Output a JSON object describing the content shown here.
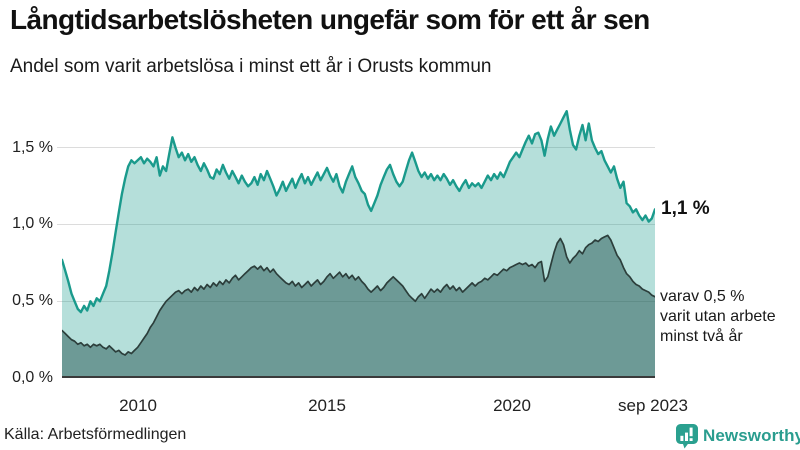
{
  "header": {
    "title": "Långtidsarbetslösheten ungefär som för ett år sen",
    "subtitle": "Andel som varit arbetslösa i minst ett år i Orusts kommun"
  },
  "chart_data": {
    "type": "area",
    "title": "Långtidsarbetslösheten ungefär som för ett år sen",
    "subtitle": "Andel som varit arbetslösa i minst ett år i Orusts kommun",
    "unit": "%",
    "frequency": "monthly",
    "x_range": [
      "2008-01",
      "2023-09"
    ],
    "ylim": [
      0,
      1.75
    ],
    "grid": "horizontal",
    "y_ticks": [
      "1,5 %",
      "1,0 %",
      "0,5 %",
      "0,0 %"
    ],
    "y_tick_values": [
      1.5,
      1.0,
      0.5,
      0.0
    ],
    "x_ticks": [
      "2010",
      "2015",
      "2020",
      "sep 2023"
    ],
    "series": [
      {
        "id": "total",
        "name": "Andel som varit arbetslösa i minst ett år",
        "color": "#1a9a8c",
        "fill": "rgba(26,154,140,0.32)",
        "end_value": 1.1,
        "end_label": "1,1 %",
        "values": [
          0.77,
          0.7,
          0.63,
          0.55,
          0.5,
          0.45,
          0.43,
          0.47,
          0.44,
          0.5,
          0.47,
          0.52,
          0.5,
          0.55,
          0.6,
          0.7,
          0.82,
          0.95,
          1.08,
          1.2,
          1.3,
          1.38,
          1.42,
          1.4,
          1.42,
          1.44,
          1.4,
          1.43,
          1.41,
          1.38,
          1.44,
          1.32,
          1.38,
          1.35,
          1.46,
          1.57,
          1.5,
          1.44,
          1.47,
          1.42,
          1.46,
          1.41,
          1.44,
          1.39,
          1.35,
          1.4,
          1.36,
          1.31,
          1.3,
          1.36,
          1.33,
          1.39,
          1.34,
          1.3,
          1.35,
          1.31,
          1.27,
          1.32,
          1.28,
          1.25,
          1.27,
          1.31,
          1.26,
          1.33,
          1.29,
          1.35,
          1.3,
          1.25,
          1.19,
          1.23,
          1.28,
          1.22,
          1.26,
          1.3,
          1.24,
          1.29,
          1.33,
          1.27,
          1.31,
          1.26,
          1.3,
          1.34,
          1.29,
          1.33,
          1.37,
          1.32,
          1.28,
          1.33,
          1.25,
          1.21,
          1.28,
          1.33,
          1.38,
          1.31,
          1.27,
          1.22,
          1.2,
          1.13,
          1.09,
          1.14,
          1.19,
          1.26,
          1.31,
          1.36,
          1.39,
          1.33,
          1.28,
          1.25,
          1.28,
          1.35,
          1.42,
          1.47,
          1.41,
          1.35,
          1.31,
          1.34,
          1.3,
          1.33,
          1.29,
          1.32,
          1.29,
          1.33,
          1.3,
          1.26,
          1.29,
          1.25,
          1.22,
          1.26,
          1.29,
          1.24,
          1.27,
          1.25,
          1.27,
          1.24,
          1.28,
          1.32,
          1.29,
          1.33,
          1.3,
          1.34,
          1.31,
          1.36,
          1.41,
          1.44,
          1.47,
          1.44,
          1.49,
          1.54,
          1.58,
          1.53,
          1.59,
          1.6,
          1.55,
          1.45,
          1.56,
          1.64,
          1.58,
          1.62,
          1.66,
          1.7,
          1.74,
          1.62,
          1.52,
          1.49,
          1.58,
          1.65,
          1.55,
          1.66,
          1.55,
          1.5,
          1.46,
          1.48,
          1.42,
          1.38,
          1.34,
          1.38,
          1.3,
          1.24,
          1.28,
          1.14,
          1.12,
          1.08,
          1.1,
          1.06,
          1.03,
          1.06,
          1.02,
          1.04,
          1.1
        ]
      },
      {
        "id": "subset",
        "name": "varav utan arbete minst två år",
        "color": "#2c3e3b",
        "fill": "rgba(22,72,66,0.45)",
        "end_value": 0.5,
        "end_label": "varav 0,5 % varit utan arbete minst två år",
        "values": [
          0.31,
          0.29,
          0.27,
          0.25,
          0.24,
          0.22,
          0.23,
          0.21,
          0.22,
          0.2,
          0.22,
          0.21,
          0.22,
          0.2,
          0.19,
          0.21,
          0.19,
          0.17,
          0.18,
          0.16,
          0.15,
          0.17,
          0.16,
          0.18,
          0.2,
          0.23,
          0.26,
          0.29,
          0.33,
          0.36,
          0.4,
          0.44,
          0.47,
          0.5,
          0.52,
          0.54,
          0.56,
          0.57,
          0.55,
          0.57,
          0.58,
          0.56,
          0.59,
          0.57,
          0.6,
          0.58,
          0.61,
          0.59,
          0.62,
          0.6,
          0.63,
          0.61,
          0.64,
          0.62,
          0.65,
          0.67,
          0.64,
          0.66,
          0.68,
          0.7,
          0.72,
          0.73,
          0.71,
          0.73,
          0.7,
          0.72,
          0.69,
          0.71,
          0.68,
          0.66,
          0.64,
          0.62,
          0.61,
          0.63,
          0.6,
          0.62,
          0.59,
          0.61,
          0.63,
          0.6,
          0.62,
          0.64,
          0.61,
          0.63,
          0.66,
          0.68,
          0.65,
          0.67,
          0.69,
          0.66,
          0.68,
          0.65,
          0.67,
          0.64,
          0.66,
          0.63,
          0.61,
          0.58,
          0.56,
          0.58,
          0.6,
          0.57,
          0.59,
          0.62,
          0.64,
          0.66,
          0.64,
          0.62,
          0.6,
          0.57,
          0.54,
          0.52,
          0.5,
          0.53,
          0.55,
          0.52,
          0.55,
          0.58,
          0.56,
          0.58,
          0.56,
          0.59,
          0.61,
          0.58,
          0.6,
          0.57,
          0.59,
          0.56,
          0.58,
          0.6,
          0.62,
          0.6,
          0.62,
          0.63,
          0.65,
          0.64,
          0.66,
          0.68,
          0.67,
          0.69,
          0.71,
          0.7,
          0.72,
          0.73,
          0.74,
          0.75,
          0.74,
          0.75,
          0.73,
          0.74,
          0.72,
          0.75,
          0.76,
          0.63,
          0.66,
          0.74,
          0.82,
          0.88,
          0.91,
          0.87,
          0.79,
          0.75,
          0.78,
          0.8,
          0.83,
          0.81,
          0.85,
          0.87,
          0.88,
          0.9,
          0.89,
          0.91,
          0.92,
          0.93,
          0.9,
          0.85,
          0.8,
          0.77,
          0.72,
          0.68,
          0.66,
          0.63,
          0.61,
          0.6,
          0.58,
          0.57,
          0.56,
          0.54,
          0.53
        ]
      }
    ]
  },
  "annotations": {
    "total_end": "1,1 %",
    "subset_line1": "varav 0,5 %",
    "subset_line2": "varit utan arbete",
    "subset_line3": "minst två år"
  },
  "footer": {
    "source": "Källa: Arbetsförmedlingen",
    "brand": "Newsworthy",
    "brand_color": "#2a9d8f",
    "brand_icon_color": "#2aa08f"
  }
}
